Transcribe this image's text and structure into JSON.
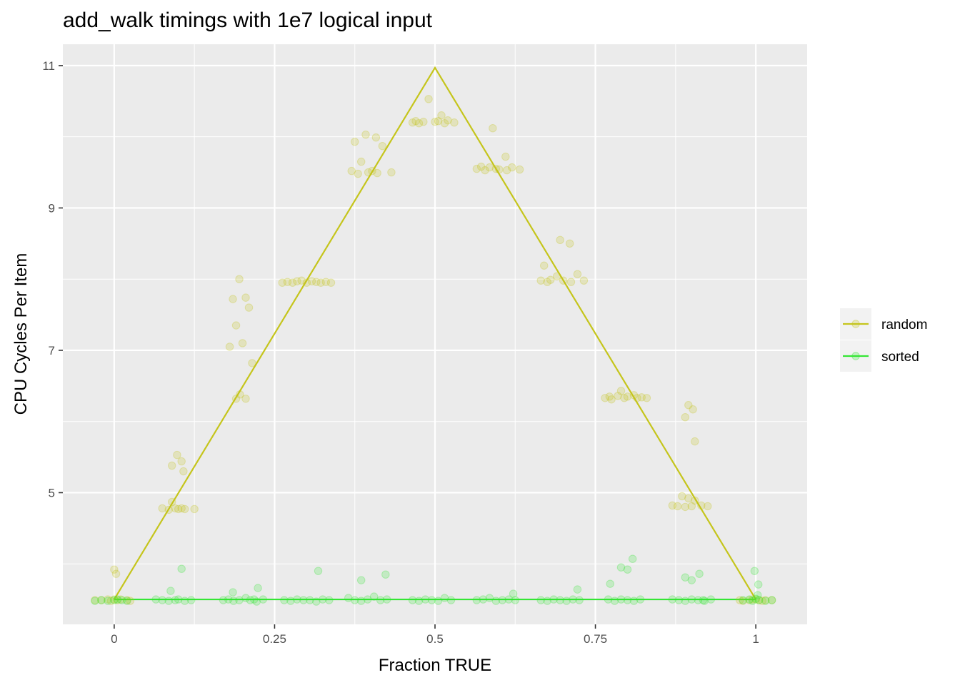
{
  "chart_data": {
    "type": "scatter",
    "title": "add_walk timings with 1e7 logical input",
    "xlabel": "Fraction TRUE",
    "ylabel": "CPU Cycles Per Item",
    "xlim": [
      -0.08,
      1.08
    ],
    "ylim": [
      3.15,
      11.3
    ],
    "x_ticks": [
      0,
      0.25,
      0.5,
      0.75,
      1
    ],
    "x_tick_labels": [
      "0",
      "0.25",
      "0.5",
      "0.75",
      "1"
    ],
    "y_ticks": [
      5,
      7,
      9,
      11
    ],
    "y_tick_labels": [
      "5",
      "7",
      "9",
      "11"
    ],
    "grid": true,
    "legend_position": "right",
    "series": [
      {
        "name": "random",
        "color": "#c5c51c",
        "line": [
          [
            0,
            3.5
          ],
          [
            0.5,
            10.97
          ],
          [
            1,
            3.5
          ]
        ],
        "points": [
          [
            -0.03,
            3.49
          ],
          [
            -0.02,
            3.49
          ],
          [
            -0.01,
            3.5
          ],
          [
            -0.005,
            3.48
          ],
          [
            0,
            3.5
          ],
          [
            0.005,
            3.49
          ],
          [
            0.01,
            3.5
          ],
          [
            0.02,
            3.49
          ],
          [
            0.025,
            3.48
          ],
          [
            0,
            3.92
          ],
          [
            0.003,
            3.86
          ],
          [
            0.075,
            4.78
          ],
          [
            0.085,
            4.76
          ],
          [
            0.09,
            4.87
          ],
          [
            0.095,
            4.78
          ],
          [
            0.1,
            4.77
          ],
          [
            0.105,
            4.78
          ],
          [
            0.11,
            4.77
          ],
          [
            0.125,
            4.77
          ],
          [
            0.09,
            5.38
          ],
          [
            0.098,
            5.53
          ],
          [
            0.105,
            5.44
          ],
          [
            0.108,
            5.3
          ],
          [
            0.18,
            7.05
          ],
          [
            0.185,
            7.72
          ],
          [
            0.19,
            7.35
          ],
          [
            0.195,
            8.0
          ],
          [
            0.2,
            7.1
          ],
          [
            0.205,
            7.74
          ],
          [
            0.21,
            7.6
          ],
          [
            0.215,
            6.82
          ],
          [
            0.19,
            6.32
          ],
          [
            0.196,
            6.38
          ],
          [
            0.205,
            6.32
          ],
          [
            0.262,
            7.95
          ],
          [
            0.27,
            7.96
          ],
          [
            0.278,
            7.95
          ],
          [
            0.285,
            7.97
          ],
          [
            0.292,
            7.98
          ],
          [
            0.3,
            7.95
          ],
          [
            0.308,
            7.97
          ],
          [
            0.315,
            7.96
          ],
          [
            0.322,
            7.95
          ],
          [
            0.33,
            7.96
          ],
          [
            0.338,
            7.95
          ],
          [
            0.37,
            9.52
          ],
          [
            0.375,
            9.93
          ],
          [
            0.38,
            9.48
          ],
          [
            0.385,
            9.65
          ],
          [
            0.392,
            10.03
          ],
          [
            0.396,
            9.5
          ],
          [
            0.402,
            9.52
          ],
          [
            0.408,
            9.99
          ],
          [
            0.41,
            9.49
          ],
          [
            0.418,
            9.87
          ],
          [
            0.432,
            9.5
          ],
          [
            0.465,
            10.2
          ],
          [
            0.47,
            10.22
          ],
          [
            0.475,
            10.19
          ],
          [
            0.482,
            10.21
          ],
          [
            0.49,
            10.53
          ],
          [
            0.5,
            10.21
          ],
          [
            0.505,
            10.22
          ],
          [
            0.51,
            10.3
          ],
          [
            0.515,
            10.19
          ],
          [
            0.52,
            10.23
          ],
          [
            0.53,
            10.2
          ],
          [
            0.565,
            9.55
          ],
          [
            0.572,
            9.58
          ],
          [
            0.578,
            9.53
          ],
          [
            0.585,
            9.57
          ],
          [
            0.59,
            10.12
          ],
          [
            0.595,
            9.55
          ],
          [
            0.6,
            9.54
          ],
          [
            0.61,
            9.72
          ],
          [
            0.612,
            9.53
          ],
          [
            0.62,
            9.57
          ],
          [
            0.632,
            9.54
          ],
          [
            0.665,
            7.98
          ],
          [
            0.67,
            8.19
          ],
          [
            0.675,
            7.96
          ],
          [
            0.68,
            7.99
          ],
          [
            0.69,
            8.04
          ],
          [
            0.695,
            8.55
          ],
          [
            0.7,
            7.98
          ],
          [
            0.71,
            8.5
          ],
          [
            0.712,
            7.96
          ],
          [
            0.722,
            8.07
          ],
          [
            0.732,
            7.98
          ],
          [
            0.765,
            6.33
          ],
          [
            0.772,
            6.35
          ],
          [
            0.775,
            6.31
          ],
          [
            0.785,
            6.36
          ],
          [
            0.79,
            6.43
          ],
          [
            0.795,
            6.33
          ],
          [
            0.8,
            6.35
          ],
          [
            0.81,
            6.37
          ],
          [
            0.815,
            6.33
          ],
          [
            0.822,
            6.34
          ],
          [
            0.83,
            6.33
          ],
          [
            0.87,
            4.82
          ],
          [
            0.878,
            4.81
          ],
          [
            0.885,
            4.95
          ],
          [
            0.89,
            4.8
          ],
          [
            0.895,
            4.92
          ],
          [
            0.9,
            4.81
          ],
          [
            0.905,
            4.89
          ],
          [
            0.915,
            4.82
          ],
          [
            0.925,
            4.81
          ],
          [
            0.89,
            6.06
          ],
          [
            0.895,
            6.23
          ],
          [
            0.902,
            6.17
          ],
          [
            0.905,
            5.72
          ],
          [
            0.975,
            3.49
          ],
          [
            0.98,
            3.48
          ],
          [
            0.99,
            3.49
          ],
          [
            0.995,
            3.5
          ],
          [
            1,
            3.5
          ],
          [
            1.005,
            3.49
          ],
          [
            1.01,
            3.48
          ],
          [
            1.015,
            3.49
          ],
          [
            1.025,
            3.49
          ]
        ]
      },
      {
        "name": "sorted",
        "color": "#35e635",
        "line": [
          [
            0,
            3.5
          ],
          [
            1,
            3.5
          ]
        ],
        "points": [
          [
            -0.03,
            3.48
          ],
          [
            -0.02,
            3.49
          ],
          [
            -0.01,
            3.48
          ],
          [
            0,
            3.49
          ],
          [
            0.005,
            3.5
          ],
          [
            0.012,
            3.49
          ],
          [
            0.02,
            3.48
          ],
          [
            0.065,
            3.5
          ],
          [
            0.075,
            3.49
          ],
          [
            0.085,
            3.48
          ],
          [
            0.095,
            3.49
          ],
          [
            0.1,
            3.5
          ],
          [
            0.11,
            3.48
          ],
          [
            0.12,
            3.49
          ],
          [
            0.088,
            3.62
          ],
          [
            0.105,
            3.93
          ],
          [
            0.17,
            3.49
          ],
          [
            0.178,
            3.5
          ],
          [
            0.186,
            3.48
          ],
          [
            0.195,
            3.49
          ],
          [
            0.205,
            3.52
          ],
          [
            0.212,
            3.49
          ],
          [
            0.218,
            3.5
          ],
          [
            0.222,
            3.47
          ],
          [
            0.232,
            3.5
          ],
          [
            0.185,
            3.6
          ],
          [
            0.224,
            3.66
          ],
          [
            0.265,
            3.49
          ],
          [
            0.275,
            3.48
          ],
          [
            0.285,
            3.5
          ],
          [
            0.295,
            3.49
          ],
          [
            0.305,
            3.49
          ],
          [
            0.315,
            3.47
          ],
          [
            0.325,
            3.5
          ],
          [
            0.335,
            3.49
          ],
          [
            0.318,
            3.9
          ],
          [
            0.365,
            3.52
          ],
          [
            0.375,
            3.49
          ],
          [
            0.385,
            3.48
          ],
          [
            0.395,
            3.5
          ],
          [
            0.405,
            3.54
          ],
          [
            0.415,
            3.49
          ],
          [
            0.425,
            3.5
          ],
          [
            0.385,
            3.77
          ],
          [
            0.423,
            3.85
          ],
          [
            0.465,
            3.49
          ],
          [
            0.475,
            3.48
          ],
          [
            0.485,
            3.5
          ],
          [
            0.495,
            3.49
          ],
          [
            0.505,
            3.48
          ],
          [
            0.515,
            3.52
          ],
          [
            0.525,
            3.49
          ],
          [
            0.565,
            3.49
          ],
          [
            0.575,
            3.5
          ],
          [
            0.585,
            3.52
          ],
          [
            0.595,
            3.48
          ],
          [
            0.605,
            3.49
          ],
          [
            0.615,
            3.5
          ],
          [
            0.625,
            3.49
          ],
          [
            0.622,
            3.58
          ],
          [
            0.665,
            3.49
          ],
          [
            0.675,
            3.48
          ],
          [
            0.685,
            3.5
          ],
          [
            0.695,
            3.49
          ],
          [
            0.705,
            3.48
          ],
          [
            0.715,
            3.5
          ],
          [
            0.725,
            3.49
          ],
          [
            0.722,
            3.64
          ],
          [
            0.77,
            3.5
          ],
          [
            0.78,
            3.48
          ],
          [
            0.79,
            3.5
          ],
          [
            0.8,
            3.49
          ],
          [
            0.81,
            3.48
          ],
          [
            0.82,
            3.5
          ],
          [
            0.773,
            3.72
          ],
          [
            0.79,
            3.95
          ],
          [
            0.8,
            3.92
          ],
          [
            0.808,
            4.07
          ],
          [
            0.87,
            3.5
          ],
          [
            0.88,
            3.49
          ],
          [
            0.89,
            3.48
          ],
          [
            0.9,
            3.5
          ],
          [
            0.91,
            3.49
          ],
          [
            0.92,
            3.48
          ],
          [
            0.93,
            3.5
          ],
          [
            0.89,
            3.81
          ],
          [
            0.9,
            3.77
          ],
          [
            0.912,
            3.86
          ],
          [
            0.918,
            3.49
          ],
          [
            0.98,
            3.49
          ],
          [
            0.99,
            3.5
          ],
          [
            0.995,
            3.48
          ],
          [
            1,
            3.51
          ],
          [
            1.005,
            3.49
          ],
          [
            1.015,
            3.48
          ],
          [
            1.025,
            3.49
          ],
          [
            0.998,
            3.9
          ],
          [
            1.004,
            3.71
          ],
          [
            1.003,
            3.56
          ]
        ]
      }
    ]
  }
}
